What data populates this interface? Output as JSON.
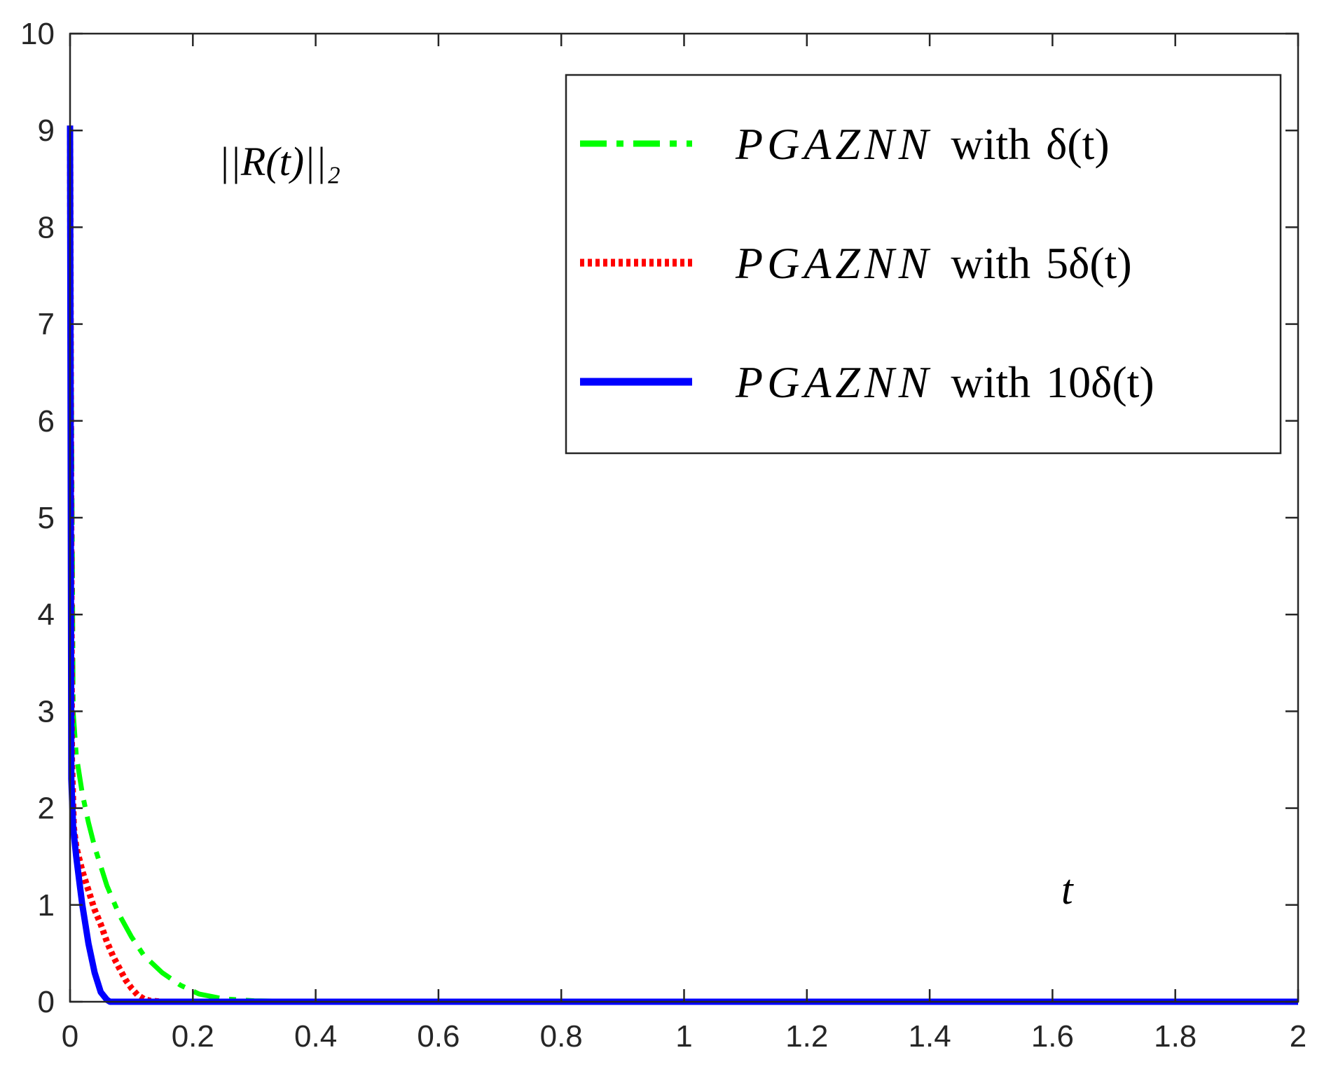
{
  "chart_data": {
    "type": "line",
    "title": "",
    "annotation_ylabel": "||R(t)||₂",
    "annotation_xlabel": "t",
    "xlim": [
      0,
      2
    ],
    "ylim": [
      0,
      10
    ],
    "xticks": [
      0,
      0.2,
      0.4,
      0.6,
      0.8,
      1,
      1.2,
      1.4,
      1.6,
      1.8,
      2
    ],
    "xtick_labels": [
      "0",
      "0.2",
      "0.4",
      "0.6",
      "0.8",
      "1",
      "1.2",
      "1.4",
      "1.6",
      "1.8",
      "2"
    ],
    "yticks": [
      0,
      1,
      2,
      3,
      4,
      5,
      6,
      7,
      8,
      9,
      10
    ],
    "ytick_labels": [
      "0",
      "1",
      "2",
      "3",
      "4",
      "5",
      "6",
      "7",
      "8",
      "9",
      "10"
    ],
    "grid": false,
    "legend_position": "top-right",
    "series": [
      {
        "name": "PGAZNN with δ(t)",
        "legend_math": "PGAZNN",
        "legend_word": "with",
        "legend_delta": "δ(t)",
        "color": "#00ff00",
        "style": "dashdot",
        "x": [
          0,
          0.005,
          0.01,
          0.02,
          0.03,
          0.04,
          0.06,
          0.08,
          0.1,
          0.12,
          0.15,
          0.18,
          0.21,
          0.25,
          0.3,
          0.4,
          0.6,
          1.0,
          1.5,
          2.0
        ],
        "y": [
          9.05,
          3.0,
          2.55,
          2.15,
          1.85,
          1.6,
          1.2,
          0.9,
          0.67,
          0.48,
          0.3,
          0.17,
          0.08,
          0.03,
          0.01,
          0.0,
          0.0,
          0.0,
          0.0,
          0.0
        ]
      },
      {
        "name": "PGAZNN with 5δ(t)",
        "legend_math": "PGAZNN",
        "legend_word": "with",
        "legend_delta": "5δ(t)",
        "color": "#ff0000",
        "style": "dotted",
        "x": [
          0,
          0.003,
          0.006,
          0.01,
          0.02,
          0.03,
          0.04,
          0.05,
          0.06,
          0.07,
          0.08,
          0.09,
          0.1,
          0.11,
          0.12,
          0.13,
          0.15,
          0.2,
          0.5,
          1.0,
          1.5,
          2.0
        ],
        "y": [
          9.05,
          2.5,
          1.8,
          1.6,
          1.35,
          1.15,
          0.95,
          0.8,
          0.62,
          0.47,
          0.35,
          0.23,
          0.14,
          0.07,
          0.03,
          0.01,
          0.0,
          0.0,
          0.0,
          0.0,
          0.0,
          0.0
        ]
      },
      {
        "name": "PGAZNN with 10δ(t)",
        "legend_math": "PGAZNN",
        "legend_word": "with",
        "legend_delta": "10δ(t)",
        "color": "#0000ff",
        "style": "solid",
        "x": [
          0,
          0.002,
          0.005,
          0.01,
          0.015,
          0.02,
          0.03,
          0.04,
          0.05,
          0.06,
          0.065,
          0.1,
          0.5,
          1.0,
          1.5,
          2.0
        ],
        "y": [
          9.05,
          2.3,
          1.8,
          1.5,
          1.25,
          1.0,
          0.6,
          0.3,
          0.1,
          0.02,
          0.0,
          0.0,
          0.0,
          0.0,
          0.0,
          0.0
        ]
      }
    ]
  }
}
